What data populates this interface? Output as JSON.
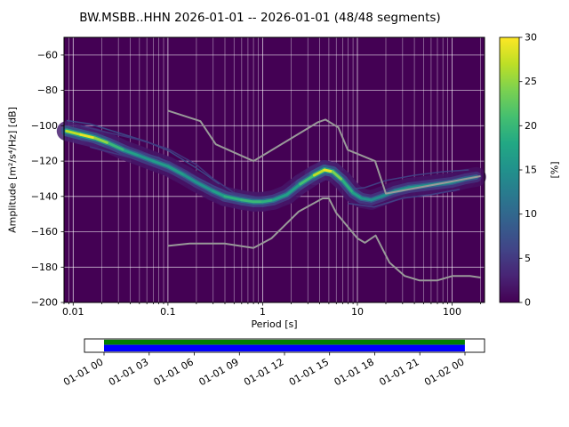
{
  "window": {
    "title": "BW.MSBB..HHN   2026-01-01 -- 2026-01-01  (48/48 segments)"
  },
  "chart_data": {
    "type": "heatmap",
    "title": "BW.MSBB..HHN   2026-01-01 -- 2026-01-01  (48/48 segments)",
    "xlabel": "Period [s]",
    "ylabel": "Amplitude [m²/s⁴/Hz] [dB]",
    "xscale": "log",
    "xlim": [
      0.008,
      220
    ],
    "ylim": [
      -200,
      -50
    ],
    "grid": true,
    "xticks": {
      "values": [
        0.01,
        0.1,
        1,
        10,
        100
      ],
      "labels": [
        "0.01",
        "0.1",
        "1",
        "10",
        "100"
      ]
    },
    "yticks": {
      "values": [
        -200,
        -180,
        -160,
        -140,
        -120,
        -100,
        -80,
        -60
      ],
      "labels": [
        "−200",
        "−180",
        "−160",
        "−140",
        "−120",
        "−100",
        "−80",
        "−60"
      ]
    },
    "colorbar": {
      "label": "[%]",
      "min": 0,
      "max": 30,
      "ticks": [
        0,
        5,
        10,
        15,
        20,
        25,
        30
      ],
      "colormap": "viridis",
      "stops": [
        [
          0,
          "#440154"
        ],
        [
          0.1,
          "#482475"
        ],
        [
          0.2,
          "#414487"
        ],
        [
          0.3,
          "#355f8d"
        ],
        [
          0.4,
          "#2a788e"
        ],
        [
          0.5,
          "#21918c"
        ],
        [
          0.6,
          "#22a884"
        ],
        [
          0.7,
          "#44bf70"
        ],
        [
          0.8,
          "#7ad151"
        ],
        [
          0.9,
          "#bddf26"
        ],
        [
          1,
          "#fde725"
        ]
      ]
    },
    "background_color": "#440154",
    "psd_ridge": [
      [
        0.0085,
        -103,
        24
      ],
      [
        0.012,
        -105,
        30
      ],
      [
        0.017,
        -107,
        28
      ],
      [
        0.024,
        -110,
        22
      ],
      [
        0.035,
        -114,
        18
      ],
      [
        0.05,
        -117,
        16
      ],
      [
        0.07,
        -120,
        16
      ],
      [
        0.1,
        -123,
        17
      ],
      [
        0.15,
        -128,
        16
      ],
      [
        0.2,
        -132,
        15
      ],
      [
        0.3,
        -137,
        16
      ],
      [
        0.4,
        -140,
        18
      ],
      [
        0.6,
        -142,
        20
      ],
      [
        0.8,
        -143,
        20
      ],
      [
        1.0,
        -143,
        20
      ],
      [
        1.3,
        -142,
        18
      ],
      [
        1.8,
        -139,
        16
      ],
      [
        2.5,
        -133,
        18
      ],
      [
        3.5,
        -128,
        24
      ],
      [
        4.5,
        -125,
        30
      ],
      [
        5.5,
        -126,
        28
      ],
      [
        7,
        -131,
        20
      ],
      [
        9,
        -138,
        18
      ],
      [
        11,
        -141,
        16
      ],
      [
        14,
        -142,
        15
      ],
      [
        18,
        -140,
        14
      ],
      [
        25,
        -137,
        15
      ],
      [
        35,
        -135,
        16
      ],
      [
        50,
        -134,
        15
      ],
      [
        70,
        -133,
        16
      ],
      [
        100,
        -132,
        15
      ],
      [
        140,
        -130,
        14
      ],
      [
        180,
        -129,
        12
      ]
    ],
    "psd_secondary_traces": [
      {
        "pct": 7,
        "points": [
          [
            0.0085,
            -97
          ],
          [
            0.015,
            -99
          ],
          [
            0.03,
            -104
          ],
          [
            0.06,
            -109
          ],
          [
            0.1,
            -114
          ],
          [
            0.2,
            -124
          ],
          [
            0.35,
            -133
          ]
        ]
      },
      {
        "pct": 5,
        "points": [
          [
            0.012,
            -100
          ],
          [
            0.02,
            -103
          ],
          [
            0.05,
            -108
          ],
          [
            0.1,
            -113
          ],
          [
            0.2,
            -122
          ],
          [
            0.3,
            -130
          ],
          [
            0.5,
            -138
          ],
          [
            1,
            -141
          ]
        ]
      },
      {
        "pct": 6,
        "points": [
          [
            0.012,
            -108
          ],
          [
            0.03,
            -112
          ],
          [
            0.08,
            -118
          ],
          [
            0.15,
            -126
          ],
          [
            0.3,
            -134
          ],
          [
            0.6,
            -141
          ]
        ]
      },
      {
        "pct": 5,
        "points": [
          [
            0.015,
            -112
          ],
          [
            0.04,
            -118
          ],
          [
            0.1,
            -126
          ],
          [
            0.2,
            -133
          ],
          [
            0.4,
            -140
          ]
        ]
      },
      {
        "pct": 6,
        "points": [
          [
            8,
            -136
          ],
          [
            12,
            -135
          ],
          [
            20,
            -131
          ],
          [
            40,
            -128
          ],
          [
            80,
            -126
          ],
          [
            150,
            -125
          ]
        ]
      },
      {
        "pct": 6,
        "points": [
          [
            8,
            -144
          ],
          [
            15,
            -146
          ],
          [
            30,
            -141
          ],
          [
            60,
            -139
          ],
          [
            120,
            -136
          ]
        ]
      }
    ],
    "noise_models": {
      "color": "#999999",
      "high": [
        [
          0.1,
          -91.5
        ],
        [
          0.22,
          -97.4
        ],
        [
          0.32,
          -110.5
        ],
        [
          0.8,
          -120.0
        ],
        [
          3.8,
          -98.1
        ],
        [
          4.6,
          -96.5
        ],
        [
          6.3,
          -101.0
        ],
        [
          7.9,
          -113.6
        ],
        [
          15.4,
          -120.0
        ],
        [
          20.0,
          -138.4
        ],
        [
          200.0,
          -128.5
        ]
      ],
      "low": [
        [
          0.1,
          -168.0
        ],
        [
          0.17,
          -166.7
        ],
        [
          0.4,
          -166.7
        ],
        [
          0.8,
          -169.2
        ],
        [
          1.24,
          -163.7
        ],
        [
          2.4,
          -148.6
        ],
        [
          4.3,
          -141.1
        ],
        [
          5.0,
          -141.1
        ],
        [
          6.0,
          -149.4
        ],
        [
          10.0,
          -163.7
        ],
        [
          12.0,
          -166.2
        ],
        [
          15.6,
          -162.1
        ],
        [
          21.9,
          -177.5
        ],
        [
          31.6,
          -185.0
        ],
        [
          45.0,
          -187.5
        ],
        [
          70.0,
          -187.5
        ],
        [
          101.0,
          -185.0
        ],
        [
          154.0,
          -185.0
        ],
        [
          200.0,
          -185.9
        ]
      ]
    },
    "timeline": {
      "tick_labels": [
        "01-01 00",
        "01-01 03",
        "01-01 06",
        "01-01 09",
        "01-01 12",
        "01-01 15",
        "01-01 18",
        "01-01 21",
        "01-02 00"
      ],
      "coverage_top_color": "#008000",
      "coverage_bottom_color": "#0000ff",
      "coverage_fraction": [
        0.049,
        0.951
      ]
    }
  }
}
